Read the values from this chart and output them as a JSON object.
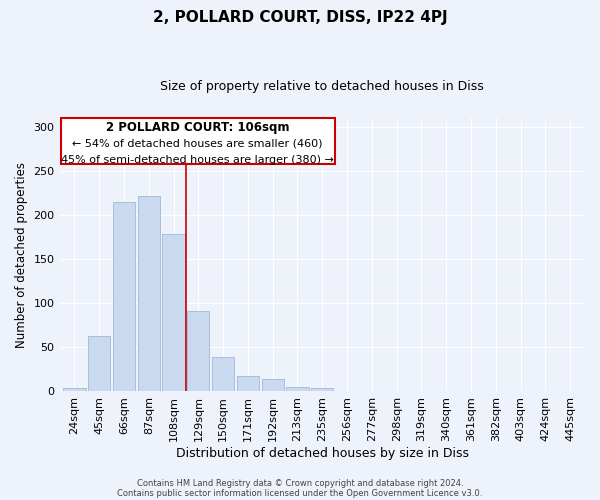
{
  "title": "2, POLLARD COURT, DISS, IP22 4PJ",
  "subtitle": "Size of property relative to detached houses in Diss",
  "xlabel": "Distribution of detached houses by size in Diss",
  "ylabel": "Number of detached properties",
  "bar_labels": [
    "24sqm",
    "45sqm",
    "66sqm",
    "87sqm",
    "108sqm",
    "129sqm",
    "150sqm",
    "171sqm",
    "192sqm",
    "213sqm",
    "235sqm",
    "256sqm",
    "277sqm",
    "298sqm",
    "319sqm",
    "340sqm",
    "361sqm",
    "382sqm",
    "403sqm",
    "424sqm",
    "445sqm"
  ],
  "bar_values": [
    4,
    63,
    215,
    221,
    178,
    91,
    39,
    18,
    14,
    5,
    4,
    0,
    1,
    0,
    0,
    0,
    0,
    0,
    0,
    0,
    1
  ],
  "bar_color": "#c8d9f0",
  "bar_edge_color": "#a0b8d8",
  "vline_x_index": 4,
  "vline_color": "#cc0000",
  "ylim": [
    0,
    310
  ],
  "yticks": [
    0,
    50,
    100,
    150,
    200,
    250,
    300
  ],
  "annotation_title": "2 POLLARD COURT: 106sqm",
  "annotation_line1": "← 54% of detached houses are smaller (460)",
  "annotation_line2": "45% of semi-detached houses are larger (380) →",
  "annotation_box_color": "#ffffff",
  "annotation_box_edge": "#cc0000",
  "bg_color": "#eef2fb",
  "grid_color": "#ffffff",
  "footer_line1": "Contains HM Land Registry data © Crown copyright and database right 2024.",
  "footer_line2": "Contains public sector information licensed under the Open Government Licence v3.0."
}
